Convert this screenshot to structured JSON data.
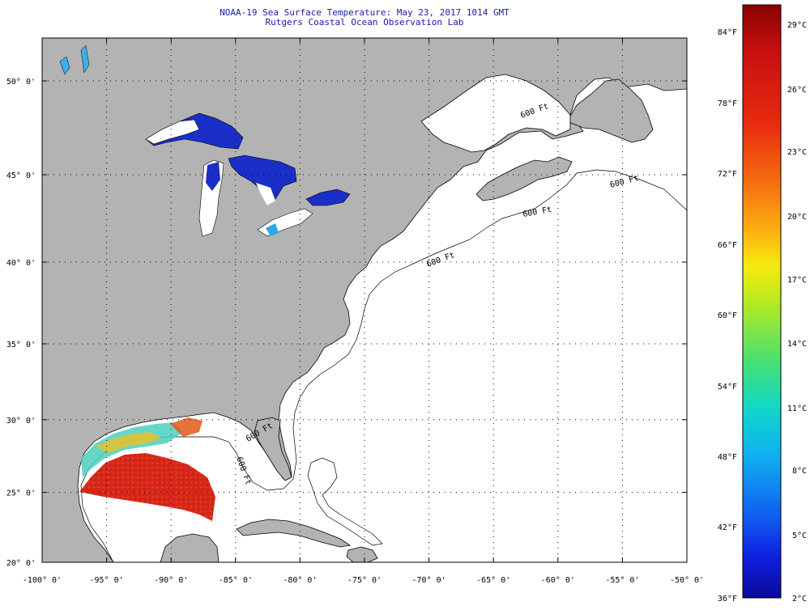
{
  "title": {
    "line1": "NOAA-19 Sea Surface Temperature:  May 23, 2017 1014 GMT",
    "line2": "Rutgers Coastal Ocean Observation Lab"
  },
  "map": {
    "lon_range": [
      -100,
      -50
    ],
    "lat_range": [
      20,
      52.5
    ],
    "lon_labels": [
      "-100° 0'",
      "-95° 0'",
      "-90° 0'",
      "-85° 0'",
      "-80° 0'",
      "-75° 0'",
      "-70° 0'",
      "-65° 0'",
      "-60° 0'",
      "-55° 0'",
      "-50° 0'"
    ],
    "lat_labels": [
      "20° 0'",
      "25° 0'",
      "30° 0'",
      "35° 0'",
      "40° 0'",
      "45° 0'",
      "50° 0'"
    ],
    "isobath_label": "600 Ft",
    "colors": {
      "land": "#b3b3b3",
      "ocean": "#ffffff",
      "lakes": "#1a2fc8",
      "gulf_warm": "#d8281a"
    }
  },
  "colorbar": {
    "fahrenheit_labels": [
      "84°F",
      "78°F",
      "72°F",
      "66°F",
      "60°F",
      "54°F",
      "48°F",
      "42°F",
      "36°F"
    ],
    "celsius_labels": [
      "29°C",
      "26°C",
      "23°C",
      "20°C",
      "17°C",
      "14°C",
      "11°C",
      "8°C",
      "5°C",
      "2°C"
    ],
    "colors_top_to_bottom": [
      "#8b0000",
      "#c81010",
      "#e82a10",
      "#f56e10",
      "#fbb010",
      "#f8ea10",
      "#b8ea20",
      "#48e070",
      "#10d8c8",
      "#10b0f0",
      "#1060f0",
      "#1020e0",
      "#0a0a9a"
    ]
  }
}
